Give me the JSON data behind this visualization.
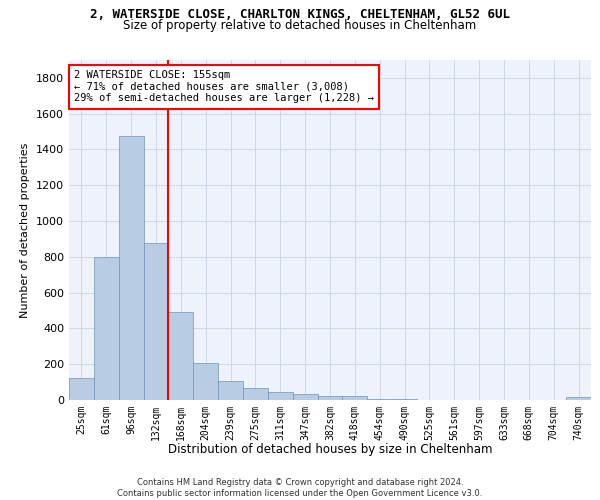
{
  "title1": "2, WATERSIDE CLOSE, CHARLTON KINGS, CHELTENHAM, GL52 6UL",
  "title2": "Size of property relative to detached houses in Cheltenham",
  "xlabel": "Distribution of detached houses by size in Cheltenham",
  "ylabel": "Number of detached properties",
  "footer1": "Contains HM Land Registry data © Crown copyright and database right 2024.",
  "footer2": "Contains public sector information licensed under the Open Government Licence v3.0.",
  "annotation_line1": "2 WATERSIDE CLOSE: 155sqm",
  "annotation_line2": "← 71% of detached houses are smaller (3,008)",
  "annotation_line3": "29% of semi-detached houses are larger (1,228) →",
  "bar_labels": [
    "25sqm",
    "61sqm",
    "96sqm",
    "132sqm",
    "168sqm",
    "204sqm",
    "239sqm",
    "275sqm",
    "311sqm",
    "347sqm",
    "382sqm",
    "418sqm",
    "454sqm",
    "490sqm",
    "525sqm",
    "561sqm",
    "597sqm",
    "633sqm",
    "668sqm",
    "704sqm",
    "740sqm"
  ],
  "bar_values": [
    125,
    800,
    1475,
    880,
    490,
    205,
    105,
    65,
    45,
    35,
    25,
    20,
    5,
    5,
    2,
    2,
    2,
    2,
    2,
    2,
    15
  ],
  "bar_color": "#b8cce4",
  "bar_edge_color": "#7094b8",
  "red_line_bin": 4,
  "ylim": [
    0,
    1900
  ],
  "yticks": [
    0,
    200,
    400,
    600,
    800,
    1000,
    1200,
    1400,
    1600,
    1800
  ],
  "grid_color": "#d0d8e8",
  "bg_color": "#eef2fa"
}
